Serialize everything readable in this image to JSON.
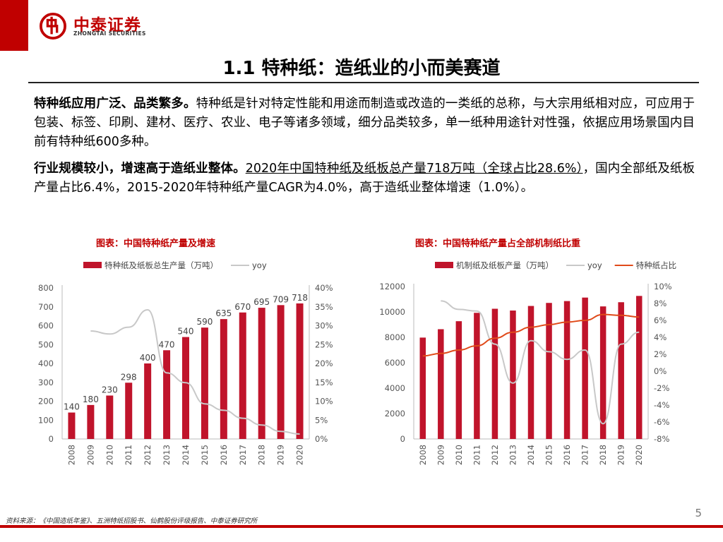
{
  "header": {
    "brand_cn": "中泰证券",
    "brand_en": "ZHONGTAI SECURITIES",
    "title": "1.1 特种纸：造纸业的小而美赛道"
  },
  "para1": {
    "bold": "特种纸应用广泛、品类繁多。",
    "text": "特种纸是针对特定性能和用途而制造或改造的一类纸的总称，与大宗用纸相对应，可应用于包装、标签、印刷、建材、医疗、农业、电子等诸多领域，细分品类较多，单一纸种用途针对性强，依据应用场景国内目前有特种纸600多种。"
  },
  "para2": {
    "bold": "行业规模较小，增速高于造纸业整体。",
    "underlined": "2020年中国特种纸及纸板总产量718万吨（全球占比28.6%）",
    "text": "，国内全部纸及纸板产量占比6.4%，2015-2020年特种纸产量CAGR为4.0%，高于造纸业整体增速（1.0%）。"
  },
  "footer": {
    "source": "资料来源：《中国造纸年鉴》、五洲特纸招股书、仙鹤股份评级报告、中泰证券研究所",
    "page": "5"
  },
  "colors": {
    "accent": "#c00000",
    "bar": "#c0142b",
    "yoy": "#c8c8c8",
    "share": "#e04a1a"
  },
  "chart_data": [
    {
      "type": "bar",
      "title": "图表：中国特种纸产量及增速",
      "categories": [
        "2008",
        "2009",
        "2010",
        "2011",
        "2012",
        "2013",
        "2014",
        "2015",
        "2016",
        "2017",
        "2018",
        "2019",
        "2020"
      ],
      "series": [
        {
          "name": "特种纸及纸板总生产量（万吨）",
          "axis": "left",
          "kind": "bar",
          "values": [
            140,
            180,
            230,
            298,
            400,
            470,
            540,
            590,
            635,
            670,
            695,
            709,
            718
          ]
        },
        {
          "name": "yoy",
          "axis": "right",
          "kind": "line",
          "values": [
            null,
            28.6,
            27.8,
            29.6,
            34.2,
            17.5,
            14.9,
            9.3,
            7.6,
            5.5,
            3.7,
            2.0,
            1.3
          ]
        }
      ],
      "ylim": [
        0,
        800
      ],
      "yticks": [
        0,
        100,
        200,
        300,
        400,
        500,
        600,
        700,
        800
      ],
      "y2lim": [
        0,
        40
      ],
      "y2ticks": [
        0,
        5,
        10,
        15,
        20,
        25,
        30,
        35,
        40
      ],
      "y2suffix": "%",
      "data_labels": true
    },
    {
      "type": "bar",
      "title": "图表：中国特种纸产量占全部机制纸比重",
      "categories": [
        "2008",
        "2009",
        "2010",
        "2011",
        "2012",
        "2013",
        "2014",
        "2015",
        "2016",
        "2017",
        "2018",
        "2019",
        "2020"
      ],
      "series": [
        {
          "name": "机制纸及纸板产量（万吨）",
          "axis": "left",
          "kind": "bar",
          "values": [
            7980,
            8640,
            9270,
            9930,
            10250,
            10110,
            10470,
            10710,
            10855,
            11130,
            10435,
            10765,
            11260
          ]
        },
        {
          "name": "yoy",
          "axis": "right",
          "kind": "line",
          "values": [
            null,
            8.3,
            7.3,
            7.1,
            3.2,
            -1.4,
            3.6,
            2.3,
            1.4,
            2.5,
            -6.2,
            3.2,
            4.6
          ]
        },
        {
          "name": "特种纸占比",
          "axis": "right",
          "kind": "line",
          "values": [
            1.8,
            2.1,
            2.5,
            3.0,
            3.9,
            4.6,
            5.2,
            5.5,
            5.8,
            6.0,
            6.7,
            6.6,
            6.4
          ]
        }
      ],
      "ylim": [
        0,
        12000
      ],
      "yticks": [
        0,
        2000,
        4000,
        6000,
        8000,
        10000,
        12000
      ],
      "y2lim": [
        -8,
        10
      ],
      "y2ticks": [
        -8,
        -6,
        -4,
        -2,
        0,
        2,
        4,
        6,
        8,
        10
      ],
      "y2suffix": "%",
      "data_labels": false
    }
  ]
}
